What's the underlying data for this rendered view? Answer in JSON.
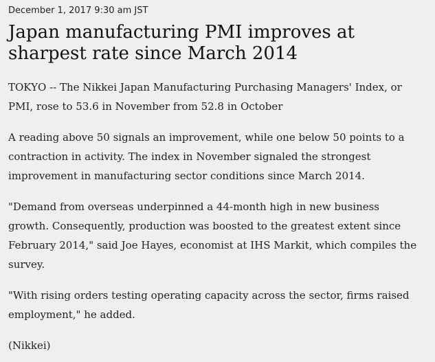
{
  "article": {
    "dateline": "December 1, 2017 9:30 am JST",
    "headline": "Japan manufacturing PMI improves at sharpest rate since March 2014",
    "paragraphs": [
      "TOKYO -- The Nikkei Japan Manufacturing Purchasing Managers' Index, or PMI, rose to 53.6 in November from 52.8 in October",
      "A reading above 50 signals an improvement, while one below 50 points to a contraction in activity. The index in November signaled the strongest improvement in manufacturing sector conditions since March 2014.",
      "\"Demand from overseas underpinned a 44-month high in new business growth. Consequently, production was boosted to the greatest extent since February 2014,\" said Joe Hayes, economist at IHS Markit, which compiles the survey.",
      "\"With rising orders testing operating capacity across the sector, firms raised employment,\" he added.",
      "(Nikkei)"
    ]
  }
}
